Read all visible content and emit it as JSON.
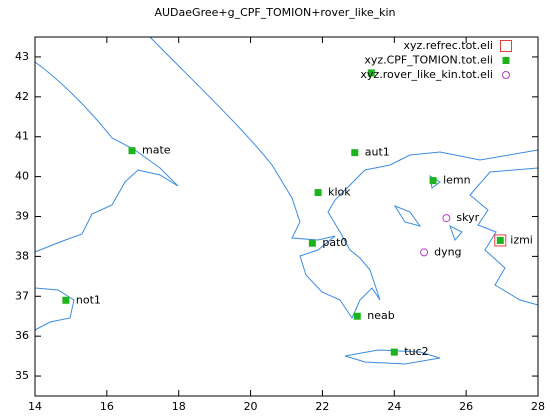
{
  "chart_data": {
    "type": "scatter",
    "title": "AUDaeGree+g_CPF_TOMION+rover_like_kin",
    "xlim": [
      14,
      28
    ],
    "ylim": [
      34.5,
      43.5
    ],
    "xticks": [
      14,
      16,
      18,
      20,
      22,
      24,
      26,
      28
    ],
    "yticks": [
      35,
      36,
      37,
      38,
      39,
      40,
      41,
      42,
      43
    ],
    "legend": "top-right",
    "series": [
      {
        "name": "xyz.refrec.tot.eli",
        "color": "#e8403c",
        "marker": "open-square",
        "x": [
          26.95
        ],
        "y": [
          38.4
        ],
        "labels": [
          null
        ]
      },
      {
        "name": "xyz.CPF_TOMION.tot.eli",
        "color": "#1cb41c",
        "marker": "square",
        "x": [
          16.7,
          22.9,
          21.88,
          25.08,
          26.95,
          21.72,
          14.86,
          22.97,
          24.0,
          23.36
        ],
        "y": [
          40.65,
          40.6,
          39.6,
          39.9,
          38.4,
          38.33,
          36.9,
          36.5,
          35.6,
          42.6
        ],
        "labels": [
          "mate",
          "aut1",
          "klok",
          "lemn",
          "izmi",
          "pat0",
          "not1",
          "neab",
          "tuc2",
          null
        ]
      },
      {
        "name": "xyz.rover_like_kin.tot.eli",
        "color": "#b43cc8",
        "marker": "circle",
        "x": [
          25.45,
          24.83
        ],
        "y": [
          38.96,
          38.1
        ],
        "labels": [
          "skyr",
          "dyng"
        ]
      }
    ]
  }
}
